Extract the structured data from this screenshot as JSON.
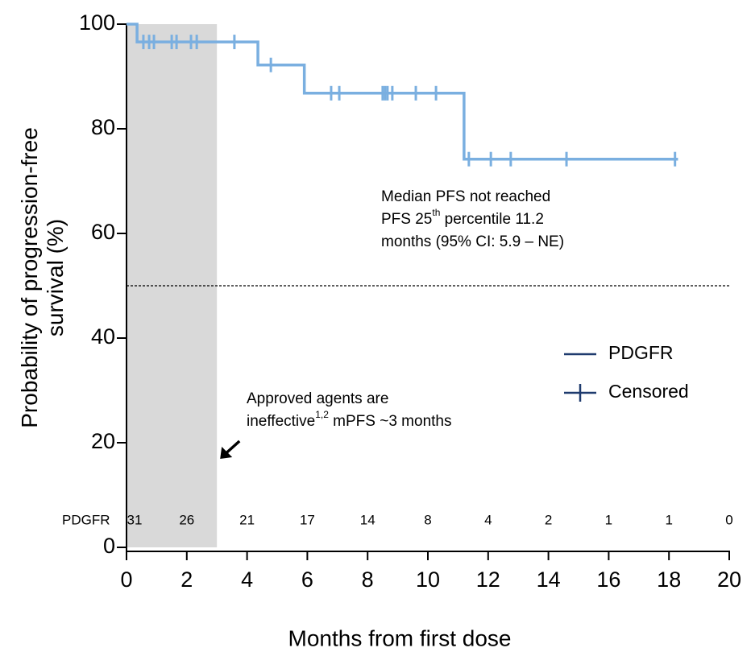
{
  "chart_data": {
    "type": "step",
    "xlabel": "Months from first dose",
    "ylabel": [
      "Probability of progression-free",
      "survival (%)"
    ],
    "xlim": [
      0,
      20
    ],
    "xticks": [
      0,
      2,
      4,
      6,
      8,
      10,
      12,
      14,
      16,
      18,
      20
    ],
    "ylim": [
      0,
      100
    ],
    "yticks": [
      0,
      20,
      40,
      60,
      80,
      100
    ],
    "shade": {
      "x": [
        0,
        3
      ],
      "color": "#d9d9d9"
    },
    "reference_line": {
      "y": 50
    },
    "legend_color": "#1f3b6e",
    "series": [
      {
        "name": "PDGFR",
        "color": "#7aafe0",
        "x": [
          0,
          0.35,
          4.36,
          5.9,
          11.2,
          18.3
        ],
        "values": [
          100,
          96.6,
          92.2,
          86.8,
          74.2,
          74.2
        ]
      },
      {
        "name": "Censored",
        "color": "#7aafe0",
        "marker": "+",
        "x": [
          0.56,
          0.75,
          0.91,
          1.5,
          1.66,
          2.14,
          2.33,
          3.58,
          4.79,
          6.79,
          7.06,
          8.5,
          8.58,
          8.66,
          8.82,
          9.6,
          10.27,
          11.36,
          12.09,
          12.75,
          14.6,
          18.2
        ],
        "values": [
          96.6,
          96.6,
          96.6,
          96.6,
          96.6,
          96.6,
          96.6,
          96.6,
          92.2,
          86.8,
          86.8,
          86.8,
          86.8,
          86.8,
          86.8,
          86.8,
          86.8,
          74.2,
          74.2,
          74.2,
          74.2,
          74.2
        ]
      }
    ],
    "annotations": [
      {
        "lines": [
          {
            "text": "Median PFS not reached"
          },
          {
            "text": "PFS 25",
            "sup": "th",
            "after": " percentile 11.2"
          },
          {
            "text": "months (95% CI: 5.9 – NE)"
          }
        ]
      },
      {
        "lines": [
          {
            "text": "Approved agents are"
          },
          {
            "text": "ineffective",
            "sup": "1,2",
            "after": " mPFS ~3 months"
          }
        ]
      }
    ],
    "at_risk": {
      "label": "PDGFR",
      "x": [
        0,
        2,
        4,
        6,
        8,
        10,
        12,
        14,
        16,
        18,
        20
      ],
      "values": [
        31,
        26,
        21,
        17,
        14,
        8,
        4,
        2,
        1,
        1,
        0
      ]
    }
  }
}
